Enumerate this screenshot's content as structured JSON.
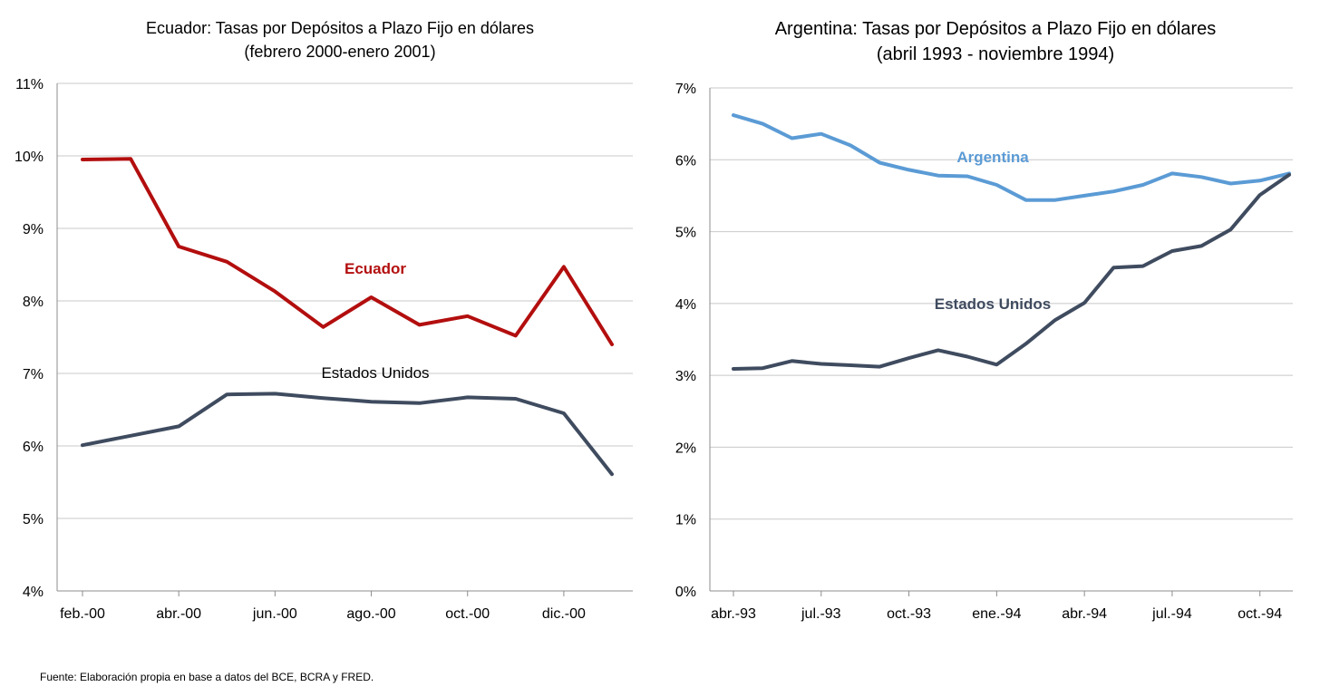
{
  "chart_data": [
    {
      "type": "line",
      "title": "Ecuador: Tasas por Depósitos a Plazo Fijo en dólares",
      "subtitle": "(febrero 2000-enero 2001)",
      "xlabel": "",
      "ylabel": "",
      "x": [
        "feb.-00",
        "mar.-00",
        "abr.-00",
        "may.-00",
        "jun.-00",
        "jul.-00",
        "ago.-00",
        "sep.-00",
        "oct.-00",
        "nov.-00",
        "dic.-00",
        "ene.-01"
      ],
      "x_tick_labels": [
        "feb.-00",
        "abr.-00",
        "jun.-00",
        "ago.-00",
        "oct.-00",
        "dic.-00"
      ],
      "y_tick_labels": [
        "4%",
        "5%",
        "6%",
        "7%",
        "8%",
        "9%",
        "10%",
        "11%"
      ],
      "ylim": [
        4,
        11
      ],
      "grid": true,
      "series": [
        {
          "name": "Ecuador",
          "color": "#b30e0e",
          "values": [
            9.95,
            9.96,
            8.75,
            8.54,
            8.13,
            7.64,
            8.05,
            7.67,
            7.79,
            7.52,
            8.47,
            7.4
          ]
        },
        {
          "name": "Estados Unidos",
          "color": "#3f4b5f",
          "values": [
            6.01,
            6.14,
            6.27,
            6.71,
            6.72,
            6.66,
            6.61,
            6.59,
            6.67,
            6.65,
            6.45,
            5.61
          ]
        }
      ]
    },
    {
      "type": "line",
      "title": "Argentina: Tasas por Depósitos a Plazo Fijo en dólares",
      "subtitle": "(abril 1993 - noviembre 1994)",
      "xlabel": "",
      "ylabel": "",
      "x": [
        "abr.-93",
        "may.-93",
        "jun.-93",
        "jul.-93",
        "ago.-93",
        "sep.-93",
        "oct.-93",
        "nov.-93",
        "dic.-93",
        "ene.-94",
        "feb.-94",
        "mar.-94",
        "abr.-94",
        "may.-94",
        "jun.-94",
        "jul.-94",
        "ago.-94",
        "sep.-94",
        "oct.-94",
        "nov.-94"
      ],
      "x_tick_labels": [
        "abr.-93",
        "jul.-93",
        "oct.-93",
        "ene.-94",
        "abr.-94",
        "jul.-94",
        "oct.-94"
      ],
      "y_tick_labels": [
        "0%",
        "1%",
        "2%",
        "3%",
        "4%",
        "5%",
        "6%",
        "7%"
      ],
      "ylim": [
        0,
        7
      ],
      "grid": true,
      "series": [
        {
          "name": "Argentina",
          "color": "#5b9bd5",
          "values": [
            6.62,
            6.5,
            6.3,
            6.36,
            6.2,
            5.96,
            5.86,
            5.78,
            5.77,
            5.65,
            5.44,
            5.44,
            5.5,
            5.56,
            5.65,
            5.81,
            5.76,
            5.67,
            5.71,
            5.81
          ]
        },
        {
          "name": "Estados Unidos",
          "color": "#3f4b5f",
          "values": [
            3.09,
            3.1,
            3.2,
            3.16,
            3.14,
            3.12,
            3.24,
            3.35,
            3.26,
            3.15,
            3.44,
            3.77,
            4.01,
            4.5,
            4.52,
            4.73,
            4.8,
            5.03,
            5.51,
            5.79
          ]
        }
      ]
    }
  ],
  "footer": "Fuente: Elaboración propia en base a datos del  BCE, BCRA y FRED."
}
